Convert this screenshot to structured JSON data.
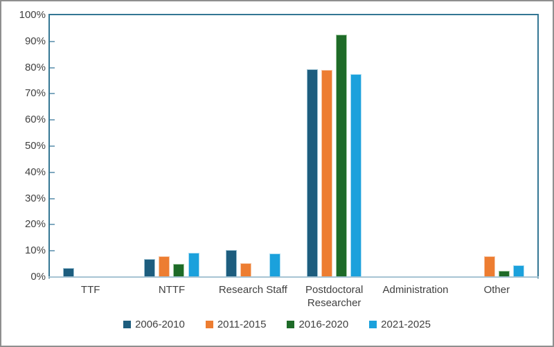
{
  "chart_data": {
    "type": "bar",
    "title": "",
    "xlabel": "",
    "ylabel": "",
    "categories": [
      "TTF",
      "NTTF",
      "Research Staff",
      "Postdoctoral Researcher",
      "Administration",
      "Other"
    ],
    "series": [
      {
        "name": "2006-2010",
        "color": "#1D5D7E",
        "border_color": "#9CC2D3",
        "values": [
          3.5,
          7.0,
          10.3,
          79.3,
          0,
          0
        ]
      },
      {
        "name": "2011-2015",
        "color": "#ED7D31",
        "border_color": "#F6C6A5",
        "values": [
          0,
          8.0,
          5.3,
          79.0,
          0,
          8.0
        ]
      },
      {
        "name": "2016-2020",
        "color": "#1E6B28",
        "border_color": "#A3CBA3",
        "values": [
          0,
          5.0,
          0,
          92.5,
          0,
          2.4
        ]
      },
      {
        "name": "2021-2025",
        "color": "#1BA1DC",
        "border_color": "#A9DCF2",
        "values": [
          0,
          9.3,
          9.0,
          77.5,
          0,
          4.6
        ]
      }
    ],
    "ylim": [
      0,
      100
    ],
    "y_tick_labels": [
      "0%",
      "10%",
      "20%",
      "30%",
      "40%",
      "50%",
      "60%",
      "70%",
      "80%",
      "90%",
      "100%"
    ],
    "grid": false,
    "legend_position": "bottom",
    "colors": {
      "axis": "#337693",
      "baseline": "#A6C3D3",
      "tick": "#7FA8BF",
      "text": "#404040",
      "frame_border": "#8F8F8F",
      "background": "#FFFFFF"
    }
  }
}
